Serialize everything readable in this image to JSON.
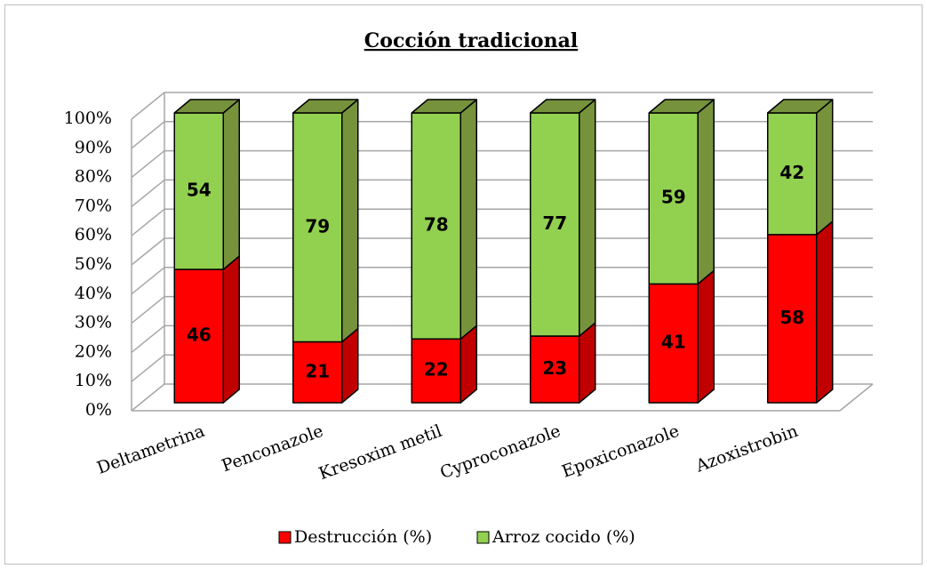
{
  "chart_data": {
    "type": "bar3d_stacked",
    "title": "Cocción tradicional",
    "categories": [
      "Deltametrina",
      "Penconazole",
      "Kresoxim metil",
      "Cyproconazole",
      "Epoxiconazole",
      "Azoxistrobin"
    ],
    "series": [
      {
        "name": "Destrucción (%)",
        "color": "#ff0000",
        "side_color": "#c00000",
        "values": [
          46,
          21,
          22,
          23,
          41,
          58
        ]
      },
      {
        "name": "Arroz cocido (%)",
        "color": "#92d050",
        "side_color": "#76933c",
        "values": [
          54,
          79,
          78,
          77,
          59,
          42
        ]
      }
    ],
    "ylim": [
      0,
      100
    ],
    "yticks": [
      {
        "value": 0,
        "label": "0%"
      },
      {
        "value": 10,
        "label": "10%"
      },
      {
        "value": 20,
        "label": "20%"
      },
      {
        "value": 30,
        "label": "30%"
      },
      {
        "value": 40,
        "label": "40%"
      },
      {
        "value": 50,
        "label": "50%"
      },
      {
        "value": 60,
        "label": "60%"
      },
      {
        "value": 70,
        "label": "70%"
      },
      {
        "value": 80,
        "label": "80%"
      },
      {
        "value": 90,
        "label": "90%"
      },
      {
        "value": 100,
        "label": "100%"
      }
    ],
    "grid": true,
    "legend": "bottom"
  }
}
